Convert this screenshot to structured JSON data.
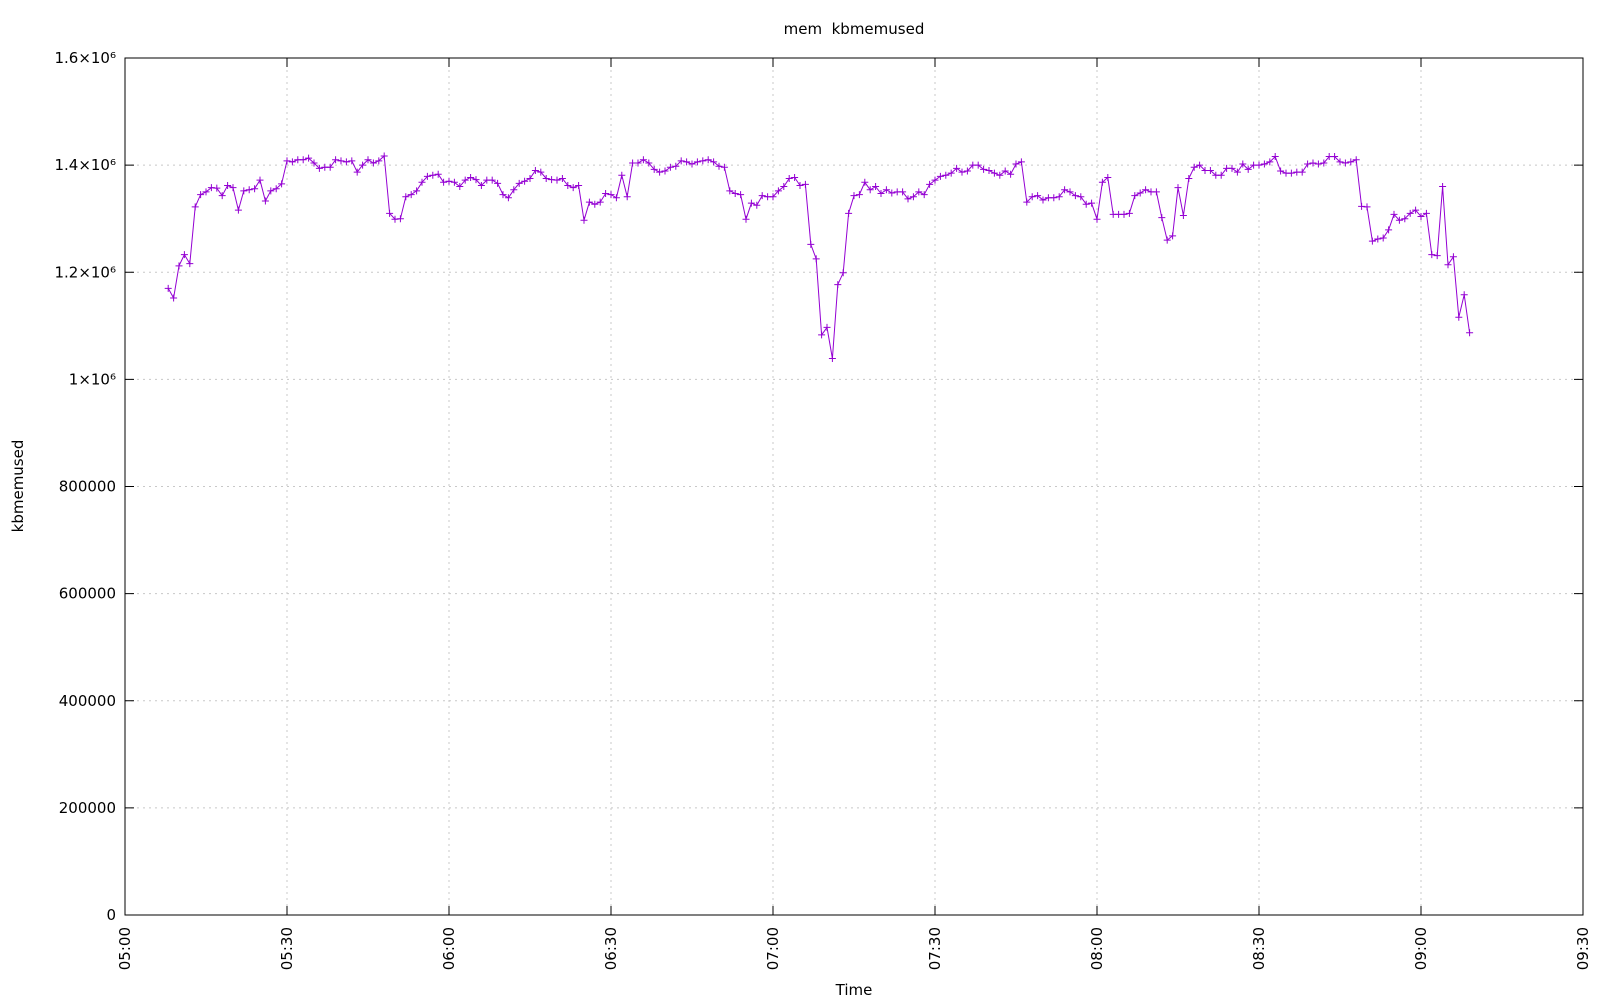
{
  "chart_data": {
    "type": "line",
    "title": "mem  kbmemused",
    "xlabel": "Time",
    "ylabel": "kbmemused",
    "x": [
      "05:08",
      "05:09",
      "05:10",
      "05:11",
      "05:12",
      "05:13",
      "05:14",
      "05:15",
      "05:16",
      "05:17",
      "05:18",
      "05:19",
      "05:20",
      "05:21",
      "05:22",
      "05:23",
      "05:24",
      "05:25",
      "05:26",
      "05:27",
      "05:28",
      "05:29",
      "05:30",
      "05:31",
      "05:32",
      "05:33",
      "05:34",
      "05:35",
      "05:36",
      "05:37",
      "05:38",
      "05:39",
      "05:40",
      "05:41",
      "05:42",
      "05:43",
      "05:44",
      "05:45",
      "05:46",
      "05:47",
      "05:48",
      "05:49",
      "05:50",
      "05:51",
      "05:52",
      "05:53",
      "05:54",
      "05:55",
      "05:56",
      "05:57",
      "05:58",
      "05:59",
      "06:00",
      "06:01",
      "06:02",
      "06:03",
      "06:04",
      "06:05",
      "06:06",
      "06:07",
      "06:08",
      "06:09",
      "06:10",
      "06:11",
      "06:12",
      "06:13",
      "06:14",
      "06:15",
      "06:16",
      "06:17",
      "06:18",
      "06:19",
      "06:20",
      "06:21",
      "06:22",
      "06:23",
      "06:24",
      "06:25",
      "06:26",
      "06:27",
      "06:28",
      "06:29",
      "06:30",
      "06:31",
      "06:32",
      "06:33",
      "06:34",
      "06:35",
      "06:36",
      "06:37",
      "06:38",
      "06:39",
      "06:40",
      "06:41",
      "06:42",
      "06:43",
      "06:44",
      "06:45",
      "06:46",
      "06:47",
      "06:48",
      "06:49",
      "06:50",
      "06:51",
      "06:52",
      "06:53",
      "06:54",
      "06:55",
      "06:56",
      "06:57",
      "06:58",
      "06:59",
      "07:00",
      "07:01",
      "07:02",
      "07:03",
      "07:04",
      "07:05",
      "07:06",
      "07:07",
      "07:08",
      "07:09",
      "07:10",
      "07:11",
      "07:12",
      "07:13",
      "07:14",
      "07:15",
      "07:16",
      "07:17",
      "07:18",
      "07:19",
      "07:20",
      "07:21",
      "07:22",
      "07:23",
      "07:24",
      "07:25",
      "07:26",
      "07:27",
      "07:28",
      "07:29",
      "07:30",
      "07:31",
      "07:32",
      "07:33",
      "07:34",
      "07:35",
      "07:36",
      "07:37",
      "07:38",
      "07:39",
      "07:40",
      "07:41",
      "07:42",
      "07:43",
      "07:44",
      "07:45",
      "07:46",
      "07:47",
      "07:48",
      "07:49",
      "07:50",
      "07:51",
      "07:52",
      "07:53",
      "07:54",
      "07:55",
      "07:56",
      "07:57",
      "07:58",
      "07:59",
      "08:00",
      "08:01",
      "08:02",
      "08:03",
      "08:04",
      "08:05",
      "08:06",
      "08:07",
      "08:08",
      "08:09",
      "08:10",
      "08:11",
      "08:12",
      "08:13",
      "08:14",
      "08:15",
      "08:16",
      "08:17",
      "08:18",
      "08:19",
      "08:20",
      "08:21",
      "08:22",
      "08:23",
      "08:24",
      "08:25",
      "08:26",
      "08:27",
      "08:28",
      "08:29",
      "08:30",
      "08:31",
      "08:32",
      "08:33",
      "08:34",
      "08:35",
      "08:36",
      "08:37",
      "08:38",
      "08:39",
      "08:40",
      "08:41",
      "08:42",
      "08:43",
      "08:44",
      "08:45",
      "08:46",
      "08:47",
      "08:48",
      "08:49",
      "08:50",
      "08:51",
      "08:52",
      "08:53",
      "08:54",
      "08:55",
      "08:56",
      "08:57",
      "08:58",
      "08:59",
      "09:00",
      "09:01",
      "09:02",
      "09:03",
      "09:04",
      "09:05",
      "09:06",
      "09:07",
      "09:08",
      "09:09"
    ],
    "series": [
      {
        "name": "kbmemused",
        "color": "#9400d3",
        "values": [
          1170000,
          1152000,
          1212000,
          1233000,
          1216000,
          1322000,
          1345000,
          1350000,
          1358000,
          1357000,
          1343000,
          1362000,
          1358000,
          1316000,
          1352000,
          1354000,
          1356000,
          1372000,
          1333000,
          1352000,
          1356000,
          1365000,
          1408000,
          1406000,
          1410000,
          1410000,
          1413000,
          1404000,
          1394000,
          1396000,
          1396000,
          1410000,
          1408000,
          1406000,
          1408000,
          1387000,
          1400000,
          1410000,
          1404000,
          1408000,
          1417000,
          1310000,
          1299000,
          1300000,
          1341000,
          1345000,
          1352000,
          1368000,
          1379000,
          1381000,
          1383000,
          1368000,
          1370000,
          1368000,
          1360000,
          1372000,
          1377000,
          1373000,
          1362000,
          1372000,
          1372000,
          1366000,
          1345000,
          1339000,
          1354000,
          1366000,
          1370000,
          1375000,
          1390000,
          1387000,
          1375000,
          1373000,
          1372000,
          1375000,
          1362000,
          1358000,
          1362000,
          1297000,
          1331000,
          1327000,
          1331000,
          1347000,
          1345000,
          1339000,
          1381000,
          1341000,
          1404000,
          1404000,
          1410000,
          1404000,
          1392000,
          1387000,
          1389000,
          1396000,
          1398000,
          1408000,
          1406000,
          1402000,
          1406000,
          1408000,
          1410000,
          1406000,
          1398000,
          1396000,
          1352000,
          1347000,
          1345000,
          1299000,
          1329000,
          1325000,
          1343000,
          1341000,
          1341000,
          1352000,
          1360000,
          1375000,
          1377000,
          1362000,
          1364000,
          1252000,
          1225000,
          1083000,
          1097000,
          1039000,
          1177000,
          1199000,
          1310000,
          1343000,
          1345000,
          1368000,
          1354000,
          1360000,
          1347000,
          1354000,
          1348000,
          1350000,
          1350000,
          1337000,
          1341000,
          1350000,
          1345000,
          1364000,
          1372000,
          1379000,
          1381000,
          1385000,
          1394000,
          1387000,
          1389000,
          1400000,
          1400000,
          1392000,
          1390000,
          1385000,
          1381000,
          1389000,
          1383000,
          1402000,
          1406000,
          1331000,
          1341000,
          1343000,
          1335000,
          1339000,
          1339000,
          1341000,
          1354000,
          1350000,
          1343000,
          1341000,
          1327000,
          1329000,
          1299000,
          1368000,
          1377000,
          1308000,
          1308000,
          1308000,
          1310000,
          1343000,
          1348000,
          1354000,
          1350000,
          1350000,
          1302000,
          1260000,
          1268000,
          1358000,
          1306000,
          1375000,
          1396000,
          1400000,
          1390000,
          1390000,
          1381000,
          1381000,
          1394000,
          1394000,
          1387000,
          1402000,
          1392000,
          1400000,
          1400000,
          1402000,
          1406000,
          1416000,
          1389000,
          1385000,
          1385000,
          1387000,
          1387000,
          1402000,
          1404000,
          1402000,
          1404000,
          1416000,
          1416000,
          1406000,
          1404000,
          1406000,
          1410000,
          1323000,
          1322000,
          1258000,
          1262000,
          1264000,
          1279000,
          1308000,
          1297000,
          1300000,
          1310000,
          1316000,
          1304000,
          1310000,
          1233000,
          1231000,
          1360000,
          1214000,
          1229000,
          1116000,
          1158000,
          1087000
        ]
      }
    ],
    "xlim": [
      "05:00",
      "09:30"
    ],
    "xticks": [
      "05:00",
      "05:30",
      "06:00",
      "06:30",
      "07:00",
      "07:30",
      "08:00",
      "08:30",
      "09:00",
      "09:30"
    ],
    "ylim": [
      0,
      1600000
    ],
    "yticks": [
      0,
      200000,
      400000,
      600000,
      800000,
      {
        "value": 1000000,
        "label": "1×10⁶"
      },
      {
        "value": 1200000,
        "label": "1.2×10⁶"
      },
      {
        "value": 1400000,
        "label": "1.4×10⁶"
      },
      {
        "value": 1600000,
        "label": "1.6×10⁶"
      }
    ],
    "grid": true
  }
}
